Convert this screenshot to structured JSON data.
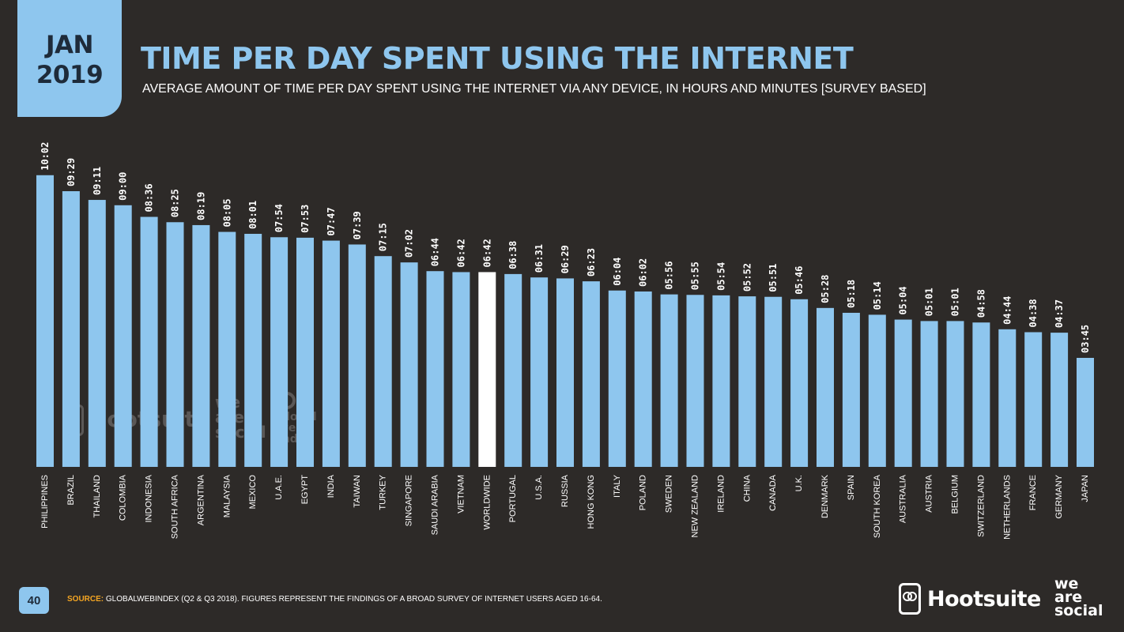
{
  "header": {
    "badge_month": "JAN",
    "badge_year": "2019",
    "title": "TIME PER DAY SPENT USING THE INTERNET",
    "subtitle": "AVERAGE AMOUNT OF TIME PER DAY SPENT USING THE INTERNET VIA ANY DEVICE, IN HOURS AND MINUTES [SURVEY BASED]"
  },
  "watermarks": {
    "hootsuite": "Hootsuite",
    "we_are_social": [
      "we",
      "are",
      "social"
    ],
    "globalwebindex": [
      "global",
      "web",
      "index"
    ]
  },
  "chart_data": {
    "type": "bar",
    "categories": [
      "PHILIPPINES",
      "BRAZIL",
      "THAILAND",
      "COLOMBIA",
      "INDONESIA",
      "SOUTH AFRICA",
      "ARGENTINA",
      "MALAYSIA",
      "MEXICO",
      "U.A.E.",
      "EGYPT",
      "INDIA",
      "TAIWAN",
      "TURKEY",
      "SINGAPORE",
      "SAUDI ARABIA",
      "VIETNAM",
      "WORLDWIDE",
      "PORTUGAL",
      "U.S.A.",
      "RUSSIA",
      "HONG KONG",
      "ITALY",
      "POLAND",
      "SWEDEN",
      "NEW ZEALAND",
      "IRELAND",
      "CHINA",
      "CANADA",
      "U.K.",
      "DENMARK",
      "SPAIN",
      "SOUTH KOREA",
      "AUSTRALIA",
      "AUSTRIA",
      "BELGIUM",
      "SWITZERLAND",
      "NETHERLANDS",
      "FRANCE",
      "GERMANY",
      "JAPAN"
    ],
    "labels": [
      "10:02",
      "09:29",
      "09:11",
      "09:00",
      "08:36",
      "08:25",
      "08:19",
      "08:05",
      "08:01",
      "07:54",
      "07:53",
      "07:47",
      "07:39",
      "07:15",
      "07:02",
      "06:44",
      "06:42",
      "06:42",
      "06:38",
      "06:31",
      "06:29",
      "06:23",
      "06:04",
      "06:02",
      "05:56",
      "05:55",
      "05:54",
      "05:52",
      "05:51",
      "05:46",
      "05:28",
      "05:18",
      "05:14",
      "05:04",
      "05:01",
      "05:01",
      "04:58",
      "04:44",
      "04:38",
      "04:37",
      "03:45"
    ],
    "highlight": "WORLDWIDE",
    "title": "TIME PER DAY SPENT USING THE INTERNET",
    "xlabel": "",
    "ylabel": "",
    "bar_color": "#8ec6ee",
    "highlight_color": "#ffffff"
  },
  "footer": {
    "page_number": "40",
    "source_label": "SOURCE:",
    "source_text": " GLOBALWEBINDEX (Q2 & Q3 2018). FIGURES REPRESENT THE FINDINGS OF A BROAD SURVEY OF INTERNET USERS AGED 16-64.",
    "brand_hootsuite": "Hootsuite",
    "brand_was": [
      "we",
      "are",
      "social"
    ]
  }
}
